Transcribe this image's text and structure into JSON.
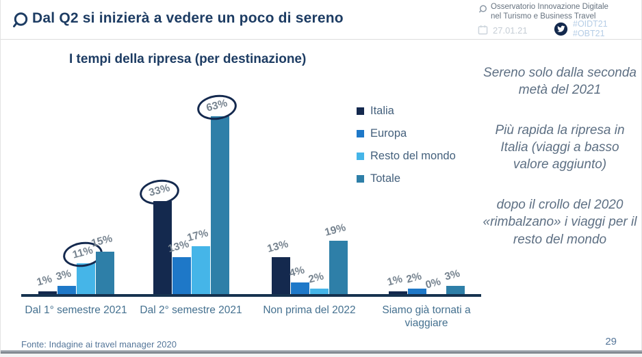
{
  "header": {
    "title": "Dal Q2 si inizierà a vedere un poco di sereno",
    "org_line1": "Osservatorio Innovazione Digitale",
    "org_line2": "nel Turismo e Business Travel",
    "date": "27.01.21",
    "hashtag1": "#OIDT21",
    "hashtag2": "#OBT21"
  },
  "colors": {
    "accent_navy": "#1d3c63",
    "axis": "#16324f",
    "category_label": "#44708f",
    "value_label": "#76838f",
    "notes_text": "#5d6f83",
    "hashtag_blue": "#b5cde6"
  },
  "chart_data": {
    "type": "bar",
    "title": "I tempi della ripresa (per destinazione)",
    "categories": [
      "Dal 1° semestre 2021",
      "Dal 2° semestre 2021",
      "Non prima del 2022",
      "Siamo già tornati a viaggiare"
    ],
    "series": [
      {
        "name": "Italia",
        "color": "#14294e",
        "values": [
          1,
          33,
          13,
          1
        ]
      },
      {
        "name": "Europa",
        "color": "#1e78c8",
        "values": [
          3,
          13,
          4,
          2
        ]
      },
      {
        "name": "Resto del mondo",
        "color": "#45b5e8",
        "values": [
          11,
          17,
          2,
          0
        ]
      },
      {
        "name": "Totale",
        "color": "#2e7fa8",
        "values": [
          15,
          63,
          19,
          3
        ]
      }
    ],
    "value_suffix": "%",
    "circled": [
      {
        "series": "Resto del mondo",
        "category": "Dal 1° semestre 2021"
      },
      {
        "series": "Italia",
        "category": "Dal 2° semestre 2021"
      },
      {
        "series": "Totale",
        "category": "Dal 2° semestre 2021"
      }
    ],
    "ylim": [
      0,
      70
    ],
    "grid": false,
    "legend_position": "right-top"
  },
  "sidebar_notes": {
    "note1": "Sereno solo dalla seconda metà del 2021",
    "note2": "Più rapida la ripresa in Italia (viaggi a basso valore aggiunto)",
    "note3": "dopo il crollo del 2020 «rimbalzano» i viaggi per il resto del mondo"
  },
  "footer": {
    "source": "Fonte: Indagine ai travel manager 2020",
    "page_number": "29"
  }
}
